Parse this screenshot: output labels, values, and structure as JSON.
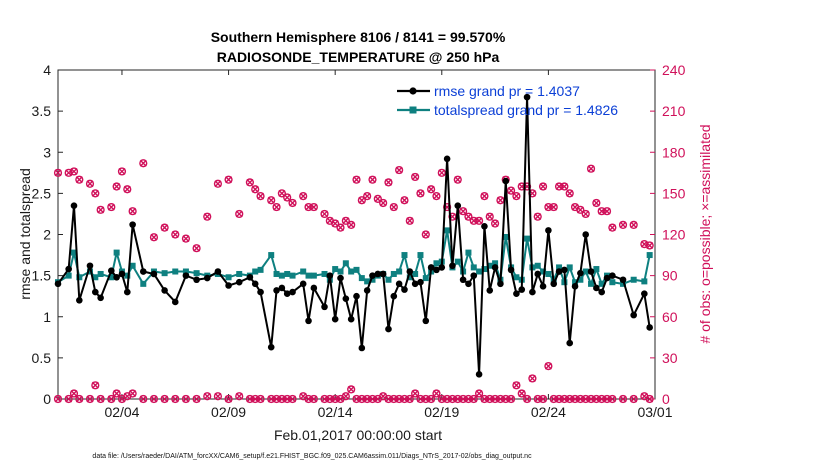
{
  "chart_data": {
    "type": "line",
    "title": "Southern Hemisphere 8106 / 8141 = 99.570%",
    "subtitle": "RADIOSONDE_TEMPERATURE @ 250 hPa",
    "xlabel": "Feb.01,2017 00:00:00 start",
    "ylabel": "rmse and totalspread",
    "y2label": "# of obs: o=possible; ×=assimilated",
    "x_ticks": [
      "02/04",
      "02/09",
      "02/14",
      "02/19",
      "02/24",
      "03/01"
    ],
    "x_tick_days": [
      3,
      8,
      13,
      18,
      23,
      28
    ],
    "xlim": [
      0,
      28
    ],
    "ylim": [
      0,
      4
    ],
    "y_ticks": [
      "0",
      "0.5",
      "1",
      "1.5",
      "2",
      "2.5",
      "3",
      "3.5",
      "4"
    ],
    "y2lim": [
      0,
      240
    ],
    "y2_ticks": [
      "0",
      "30",
      "60",
      "90",
      "120",
      "150",
      "180",
      "210",
      "240"
    ],
    "grid": false,
    "legend_position": "top-right",
    "colors": {
      "rmse": "#000000",
      "totalspread": "#0e8080",
      "obs": "#d0105a",
      "legend_text": "#0b3fd6"
    },
    "series": [
      {
        "name": "rmse grand pr = 1.4037",
        "axis": "left",
        "x": [
          0,
          0.5,
          0.75,
          1,
          1.5,
          1.75,
          2,
          2.5,
          2.75,
          3,
          3.25,
          3.5,
          4,
          4.5,
          5,
          5.5,
          6,
          6.5,
          7,
          7.5,
          8,
          8.5,
          9,
          9.25,
          9.5,
          10,
          10.25,
          10.5,
          10.75,
          11,
          11.5,
          11.75,
          12,
          12.5,
          12.75,
          13,
          13.25,
          13.5,
          13.75,
          14,
          14.25,
          14.5,
          14.75,
          15,
          15.25,
          15.5,
          15.75,
          16,
          16.25,
          16.5,
          16.75,
          17,
          17.25,
          17.5,
          17.75,
          18,
          18.25,
          18.5,
          18.75,
          19,
          19.25,
          19.5,
          19.75,
          20,
          20.25,
          20.5,
          20.75,
          21,
          21.25,
          21.5,
          21.75,
          22,
          22.25,
          22.5,
          22.75,
          23,
          23.25,
          23.5,
          23.75,
          24,
          24.25,
          24.5,
          24.75,
          25,
          25.25,
          25.5,
          25.75,
          26,
          26.5,
          27,
          27.5,
          27.75
        ],
        "values": [
          1.4,
          1.58,
          2.35,
          1.2,
          1.62,
          1.3,
          1.23,
          1.56,
          1.48,
          1.52,
          1.3,
          2.12,
          1.55,
          1.52,
          1.32,
          1.18,
          1.5,
          1.45,
          1.47,
          1.55,
          1.38,
          1.42,
          1.48,
          1.4,
          1.3,
          0.63,
          1.32,
          1.35,
          1.28,
          1.3,
          1.4,
          0.95,
          1.35,
          1.12,
          1.5,
          0.97,
          1.47,
          1.22,
          0.97,
          1.25,
          0.62,
          1.32,
          1.5,
          1.52,
          1.52,
          0.85,
          1.25,
          1.4,
          1.33,
          1.55,
          1.4,
          1.42,
          0.95,
          1.6,
          1.57,
          1.6,
          2.92,
          1.62,
          2.35,
          1.45,
          1.4,
          1.5,
          0.3,
          2.1,
          1.32,
          1.6,
          1.4,
          2.65,
          1.57,
          1.28,
          1.33,
          3.67,
          1.3,
          1.52,
          1.37,
          2.05,
          1.4,
          1.55,
          1.57,
          0.68,
          1.37,
          1.53,
          2.0,
          1.55,
          1.35,
          1.3,
          1.47,
          1.5,
          1.45,
          1.02,
          1.28,
          0.87
        ]
      },
      {
        "name": "totalspread grand pr = 1.4826",
        "axis": "left",
        "x": [
          0,
          0.5,
          0.75,
          1,
          1.5,
          1.75,
          2,
          2.5,
          2.75,
          3,
          3.25,
          3.5,
          4,
          4.5,
          5,
          5.5,
          6,
          6.5,
          7,
          7.5,
          8,
          8.5,
          9,
          9.25,
          9.5,
          10,
          10.25,
          10.5,
          10.75,
          11,
          11.5,
          11.75,
          12,
          12.5,
          12.75,
          13,
          13.25,
          13.5,
          13.75,
          14,
          14.25,
          14.5,
          14.75,
          15,
          15.25,
          15.5,
          15.75,
          16,
          16.25,
          16.5,
          16.75,
          17,
          17.25,
          17.5,
          17.75,
          18,
          18.25,
          18.5,
          18.75,
          19,
          19.25,
          19.5,
          19.75,
          20,
          20.25,
          20.5,
          20.75,
          21,
          21.25,
          21.5,
          21.75,
          22,
          22.25,
          22.5,
          22.75,
          23,
          23.25,
          23.5,
          23.75,
          24,
          24.25,
          24.5,
          24.75,
          25,
          25.25,
          25.5,
          25.75,
          26,
          26.5,
          27,
          27.5,
          27.75
        ],
        "values": [
          1.42,
          1.5,
          1.78,
          1.48,
          1.55,
          1.48,
          1.52,
          1.48,
          1.78,
          1.55,
          1.5,
          1.62,
          1.4,
          1.55,
          1.53,
          1.55,
          1.55,
          1.53,
          1.5,
          1.52,
          1.48,
          1.52,
          1.5,
          1.55,
          1.57,
          1.75,
          1.52,
          1.5,
          1.52,
          1.5,
          1.55,
          1.5,
          1.5,
          1.52,
          1.45,
          1.58,
          1.55,
          1.65,
          1.55,
          1.57,
          1.47,
          1.43,
          1.45,
          1.5,
          1.52,
          1.45,
          1.52,
          1.55,
          1.75,
          1.48,
          1.52,
          1.75,
          1.47,
          1.55,
          1.65,
          1.67,
          2.05,
          1.6,
          1.67,
          1.55,
          1.78,
          1.6,
          1.55,
          1.58,
          1.62,
          1.65,
          1.45,
          1.97,
          1.6,
          1.48,
          1.45,
          1.95,
          1.6,
          1.62,
          1.55,
          1.52,
          1.45,
          1.6,
          1.42,
          1.6,
          1.42,
          1.45,
          1.55,
          1.4,
          1.58,
          1.4,
          1.5,
          1.42,
          1.4,
          1.45,
          1.43,
          1.75
        ]
      }
    ],
    "obs": {
      "possible_x": [
        0,
        0.5,
        0.75,
        1,
        1.5,
        1.75,
        2,
        2.5,
        2.75,
        3,
        3.25,
        3.5,
        4,
        4.5,
        5,
        5.5,
        6,
        6.5,
        7,
        7.5,
        8,
        8.5,
        9,
        9.25,
        9.5,
        10,
        10.25,
        10.5,
        10.75,
        11,
        11.5,
        11.75,
        12,
        12.5,
        12.75,
        13,
        13.25,
        13.5,
        13.75,
        14,
        14.25,
        14.5,
        14.75,
        15,
        15.25,
        15.5,
        15.75,
        16,
        16.25,
        16.5,
        16.75,
        17,
        17.25,
        17.5,
        17.75,
        18,
        18.25,
        18.5,
        18.75,
        19,
        19.25,
        19.5,
        19.75,
        20,
        20.25,
        20.5,
        20.75,
        21,
        21.25,
        21.5,
        21.75,
        22,
        22.25,
        22.5,
        22.75,
        23,
        23.25,
        23.5,
        23.75,
        24,
        24.25,
        24.5,
        24.75,
        25,
        25.25,
        25.5,
        25.75,
        26,
        26.5,
        27,
        27.5,
        27.75
      ],
      "possible": [
        165,
        165,
        166,
        160,
        157,
        150,
        138,
        140,
        155,
        166,
        153,
        137,
        172,
        118,
        125,
        120,
        117,
        110,
        133,
        157,
        160,
        135,
        158,
        153,
        148,
        145,
        140,
        150,
        147,
        143,
        148,
        140,
        140,
        135,
        130,
        128,
        125,
        130,
        127,
        160,
        145,
        148,
        160,
        146,
        143,
        158,
        140,
        167,
        145,
        130,
        162,
        150,
        120,
        153,
        148,
        165,
        140,
        133,
        160,
        137,
        133,
        130,
        130,
        148,
        133,
        128,
        145,
        160,
        152,
        148,
        155,
        155,
        150,
        133,
        155,
        140,
        140,
        155,
        155,
        150,
        140,
        138,
        135,
        168,
        143,
        137,
        137,
        125,
        127,
        127,
        113,
        112
      ],
      "assimilated_x": [
        0,
        0.5,
        0.75,
        1,
        1.5,
        1.75,
        2,
        2.5,
        2.75,
        3,
        3.25,
        3.5,
        4,
        4.5,
        5,
        5.5,
        6,
        6.5,
        7,
        7.5,
        8,
        8.5,
        9,
        9.25,
        9.5,
        10,
        10.25,
        10.5,
        10.75,
        11,
        11.5,
        11.75,
        12,
        12.5,
        12.75,
        13,
        13.25,
        13.5,
        13.75,
        14,
        14.25,
        14.5,
        14.75,
        15,
        15.25,
        15.5,
        15.75,
        16,
        16.25,
        16.5,
        16.75,
        17,
        17.25,
        17.5,
        17.75,
        18,
        18.25,
        18.5,
        18.75,
        19,
        19.25,
        19.5,
        19.75,
        20,
        20.25,
        20.5,
        20.75,
        21,
        21.25,
        21.5,
        21.75,
        22,
        22.25,
        22.5,
        22.75,
        23,
        23.25,
        23.5,
        23.75,
        24,
        24.25,
        24.5,
        24.75,
        25,
        25.25,
        25.5,
        25.75,
        26,
        26.5,
        27,
        27.5,
        27.75
      ],
      "assimilated": [
        0,
        0,
        4,
        0,
        0,
        10,
        0,
        0,
        4,
        0,
        2,
        4,
        0,
        0,
        0,
        0,
        0,
        0,
        2,
        2,
        0,
        2,
        0,
        0,
        0,
        0,
        0,
        0,
        0,
        0,
        2,
        0,
        0,
        0,
        0,
        0,
        0,
        2,
        7,
        0,
        0,
        0,
        0,
        0,
        2,
        0,
        0,
        0,
        0,
        0,
        4,
        0,
        0,
        0,
        4,
        0,
        0,
        0,
        0,
        0,
        0,
        0,
        4,
        0,
        0,
        0,
        0,
        0,
        0,
        10,
        4,
        0,
        15,
        0,
        0,
        24,
        0,
        0,
        0,
        0,
        0,
        0,
        0,
        0,
        0,
        0,
        0,
        0,
        0,
        0,
        2,
        0
      ]
    }
  },
  "footer": {
    "text": "data file: /Users/raeder/DAI/ATM_forcXX/CAM6_setup/f.e21.FHIST_BGC.f09_025.CAM6assim.011/Diags_NTrS_2017-02/obs_diag_output.nc"
  }
}
